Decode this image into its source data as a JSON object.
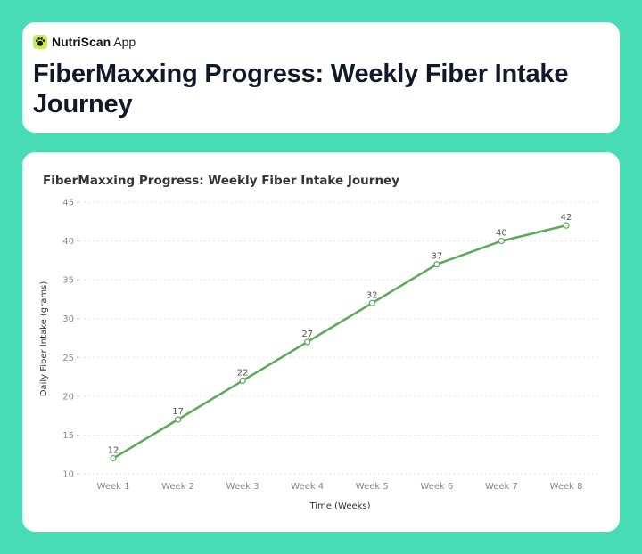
{
  "brand": {
    "name": "NutriScan",
    "suffix": "App",
    "accent": "#c6ec5a"
  },
  "header": {
    "title": "FiberMaxxing Progress: Weekly Fiber Intake Journey"
  },
  "colors": {
    "background": "#47dcb4",
    "line": "#5aaa5a"
  },
  "chart_data": {
    "type": "line",
    "title": "FiberMaxxing Progress: Weekly Fiber Intake Journey",
    "xlabel": "Time (Weeks)",
    "ylabel": "Daily Fiber Intake (grams)",
    "categories": [
      "Week 1",
      "Week 2",
      "Week 3",
      "Week 4",
      "Week 5",
      "Week 6",
      "Week 7",
      "Week 8"
    ],
    "values": [
      12,
      17,
      22,
      27,
      32,
      37,
      40,
      42
    ],
    "ylim": [
      10,
      45
    ],
    "yticks": [
      10,
      15,
      20,
      25,
      30,
      35,
      40,
      45
    ],
    "grid": true,
    "data_labels": true
  }
}
